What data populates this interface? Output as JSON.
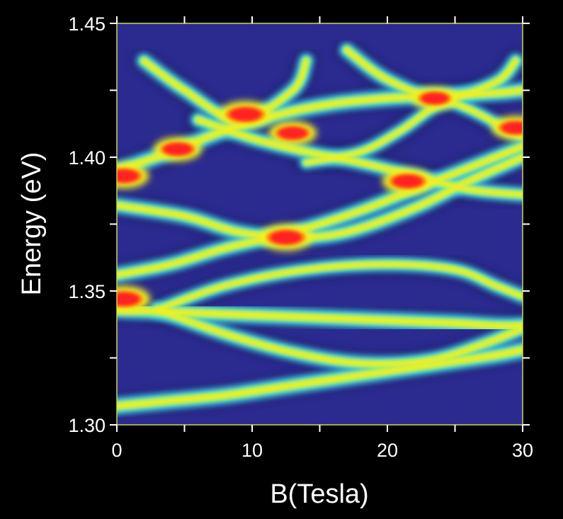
{
  "chart_data": {
    "type": "heatmap",
    "title": "",
    "xlabel": "B(Tesla)",
    "ylabel": "Energy (eV)",
    "xlim": [
      0,
      30
    ],
    "ylim": [
      1.3,
      1.45
    ],
    "x_ticks": [
      0,
      10,
      20,
      30
    ],
    "x_tick_labels": [
      "0",
      "10",
      "20",
      "30"
    ],
    "x_minor_ticks": [
      0,
      5,
      10,
      15,
      20,
      25,
      30
    ],
    "y_ticks": [
      1.3,
      1.35,
      1.4,
      1.45
    ],
    "y_tick_labels": [
      "1.30",
      "1.35",
      "1.40",
      "1.45"
    ],
    "y_minor_ticks": [
      1.3,
      1.325,
      1.35,
      1.375,
      1.4,
      1.425,
      1.45
    ],
    "grid": false,
    "colormap": [
      "#27278f",
      "#3a4cc0",
      "#3fc8e0",
      "#9cf07a",
      "#f0f020",
      "#ff2020"
    ],
    "background_color": "#2b2a8f",
    "series": [
      {
        "x": [
          0,
          4,
          8,
          12,
          16,
          20,
          24,
          28,
          30
        ],
        "y": [
          1.307,
          1.309,
          1.311,
          1.314,
          1.317,
          1.32,
          1.323,
          1.326,
          1.328
        ],
        "intensity": 0.55
      },
      {
        "x": [
          0,
          5,
          10,
          15,
          20,
          25,
          28,
          30
        ],
        "y": [
          1.343,
          1.342,
          1.341,
          1.34,
          1.339,
          1.338,
          1.337,
          1.337
        ],
        "intensity": 0.55
      },
      {
        "x": [
          3,
          8,
          13,
          18,
          23,
          27,
          30
        ],
        "y": [
          1.343,
          1.334,
          1.327,
          1.323,
          1.324,
          1.33,
          1.336
        ],
        "intensity": 0.45
      },
      {
        "x": [
          3,
          8,
          14,
          20,
          25,
          28,
          30
        ],
        "y": [
          1.343,
          1.352,
          1.358,
          1.36,
          1.358,
          1.352,
          1.348
        ],
        "intensity": 0.35
      },
      {
        "x": [
          0,
          4,
          8,
          12,
          16,
          20,
          24,
          28,
          30
        ],
        "y": [
          1.395,
          1.402,
          1.41,
          1.416,
          1.42,
          1.422,
          1.423,
          1.424,
          1.425
        ],
        "intensity": 0.5
      },
      {
        "x": [
          0,
          5,
          9,
          13,
          17,
          22,
          26,
          30
        ],
        "y": [
          1.382,
          1.378,
          1.372,
          1.37,
          1.372,
          1.381,
          1.391,
          1.4
        ],
        "intensity": 0.45
      },
      {
        "x": [
          0,
          4,
          8,
          13,
          18,
          23,
          27,
          30
        ],
        "y": [
          1.356,
          1.36,
          1.366,
          1.372,
          1.38,
          1.39,
          1.398,
          1.404
        ],
        "intensity": 0.45
      },
      {
        "x": [
          6,
          10,
          14,
          18,
          22,
          26,
          30
        ],
        "y": [
          1.414,
          1.407,
          1.402,
          1.398,
          1.393,
          1.388,
          1.386
        ],
        "intensity": 0.4
      },
      {
        "x": [
          2,
          5,
          9,
          13,
          14
        ],
        "y": [
          1.436,
          1.425,
          1.414,
          1.425,
          1.436
        ],
        "intensity": 0.4
      },
      {
        "x": [
          17,
          20,
          24,
          28,
          29.5
        ],
        "y": [
          1.44,
          1.429,
          1.422,
          1.428,
          1.436
        ],
        "intensity": 0.4
      },
      {
        "x": [
          14,
          18,
          21,
          24,
          26,
          29,
          30
        ],
        "y": [
          1.398,
          1.402,
          1.41,
          1.42,
          1.418,
          1.41,
          1.408
        ],
        "intensity": 0.3
      }
    ],
    "hotspots": [
      {
        "x": 0.5,
        "y": 1.347,
        "intensity": 1.0
      },
      {
        "x": 12.5,
        "y": 1.37,
        "intensity": 1.0
      },
      {
        "x": 0.5,
        "y": 1.393,
        "intensity": 0.95
      },
      {
        "x": 4.5,
        "y": 1.403,
        "intensity": 0.9
      },
      {
        "x": 9.5,
        "y": 1.416,
        "intensity": 1.0
      },
      {
        "x": 13,
        "y": 1.409,
        "intensity": 0.9
      },
      {
        "x": 21.5,
        "y": 1.391,
        "intensity": 0.95
      },
      {
        "x": 23.5,
        "y": 1.422,
        "intensity": 0.85
      },
      {
        "x": 29.5,
        "y": 1.411,
        "intensity": 0.9
      }
    ]
  }
}
